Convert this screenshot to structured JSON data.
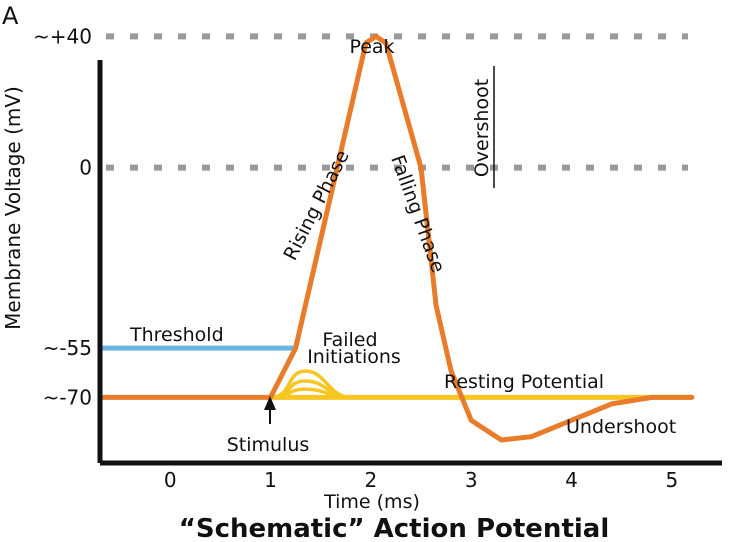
{
  "chart_data": {
    "type": "line",
    "panel_label": "A",
    "title": "“Schematic” Action Potential",
    "xlabel": "Time (ms)",
    "ylabel": "Membrane Voltage (mV)",
    "xlim": [
      -0.7,
      5.5
    ],
    "ylim": [
      -90,
      45
    ],
    "x_ticks": [
      0,
      1,
      2,
      3,
      4,
      5
    ],
    "y_ticks": [
      {
        "value": 40,
        "label": "~+40"
      },
      {
        "value": 0,
        "label": "0"
      },
      {
        "value": -55,
        "label": "~-55"
      },
      {
        "value": -70,
        "label": "~-70"
      }
    ],
    "reference_lines": [
      {
        "value": 40,
        "style": "dotted"
      },
      {
        "value": 0,
        "style": "dotted"
      }
    ],
    "series": [
      {
        "color": "#E87C2A",
        "x": [
          -0.7,
          1.0,
          1.25,
          1.95,
          2.05,
          2.15,
          2.5,
          2.65,
          2.8,
          3.0,
          3.3,
          3.6,
          4.0,
          4.4,
          4.8,
          5.2
        ],
        "y": [
          -70,
          -70,
          -55,
          38,
          40,
          38,
          0,
          -42,
          -62,
          -77,
          -83,
          -82,
          -77,
          -72,
          -70,
          -70
        ]
      },
      {
        "name": "Threshold",
        "color": "#6CB4E4",
        "x": [
          -0.7,
          1.25
        ],
        "y": [
          -55,
          -55
        ]
      },
      {
        "color": "#F7C623",
        "x": [
          1.0,
          5.2
        ],
        "y": [
          -70,
          -70
        ]
      }
    ],
    "failed_initiations": {
      "color": "#F7C623",
      "peaks": [
        -62,
        -65,
        -67.5
      ]
    },
    "annotations": {
      "peak": "Peak",
      "rising": "Rising Phase",
      "falling": "Falling Phase",
      "overshoot": "Overshoot",
      "threshold": "Threshold",
      "failed_1": "Failed",
      "failed_2": "Initiations",
      "resting": "Resting Potential",
      "stimulus": "Stimulus",
      "undershoot": "Undershoot"
    },
    "colors": {
      "axis": "#111111",
      "dots": "#999999",
      "action_potential": "#E87C2A",
      "threshold": "#6CB4E4",
      "resting": "#F7C623"
    }
  }
}
